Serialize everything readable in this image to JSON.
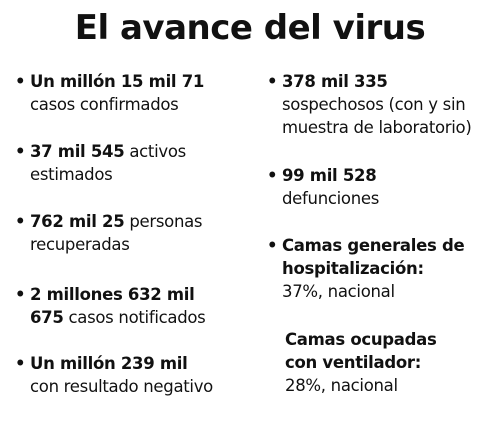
{
  "title": "El avance del virus",
  "bullet_glyph": "•",
  "left": [
    {
      "bold": "Un millón 15 mil 71",
      "rest": "",
      "line2": "casos confirmados"
    },
    {
      "bold": "37 mil 545",
      "rest": " activos",
      "line2": "estimados"
    },
    {
      "bold": "762 mil 25",
      "rest": " personas",
      "line2": "recuperadas"
    },
    {
      "bold": "2 millones 632 mil",
      "rest": "",
      "line2_bold": "675",
      "line2": " casos notificados"
    },
    {
      "bold": "Un millón 239 mil",
      "rest": "",
      "line2": "con resultado negativo"
    }
  ],
  "right": [
    {
      "bold": "378 mil 335",
      "line2": "sospechosos (con y sin",
      "line3": "muestra de laboratorio)"
    },
    {
      "bold": "99 mil 528",
      "line2": "defunciones"
    },
    {
      "bold": "Camas generales de",
      "bold2": "hospitalización:",
      "line2": "37%, nacional"
    },
    {
      "bold": "Camas ocupadas",
      "bold2": "con ventilador:",
      "line2": "28%, nacional"
    }
  ]
}
